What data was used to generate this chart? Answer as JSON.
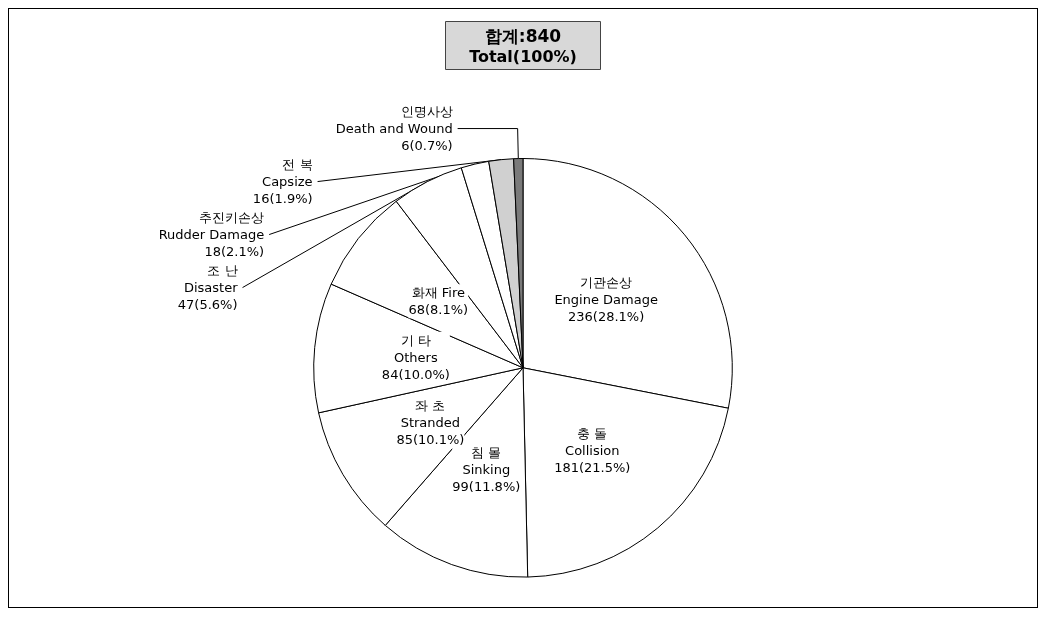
{
  "chart_data": {
    "type": "pie",
    "title": "합계:840",
    "subtitle": "Total(100%)",
    "categories": [
      "기관손상\nEngine Damage",
      "충 돌\nCollision",
      "침 몰\nSinking",
      "좌 초\nStranded",
      "기 타\nOthers",
      "화재 Fire",
      "조 난\nDisaster",
      "추진키손상\nRudder Damage",
      "전 복\nCapsize",
      "인명사상\nDeath and Wound"
    ],
    "values": [
      236,
      181,
      99,
      85,
      84,
      68,
      47,
      18,
      16,
      6
    ],
    "value_labels": [
      "236(28.1%)",
      "181(21.5%)",
      "99(11.8%)",
      "85(10.1%)",
      "84(10.0%)",
      "68(8.1%)",
      "47(5.6%)",
      "18(2.1%)",
      "16(1.9%)",
      "6(0.7%)"
    ],
    "colors": [
      "#ffffff",
      "#ffffff",
      "#ffffff",
      "#ffffff",
      "#ffffff",
      "#ffffff",
      "#ffffff",
      "#ffffff",
      "#d0d0d0",
      "#7a7a7a"
    ]
  }
}
